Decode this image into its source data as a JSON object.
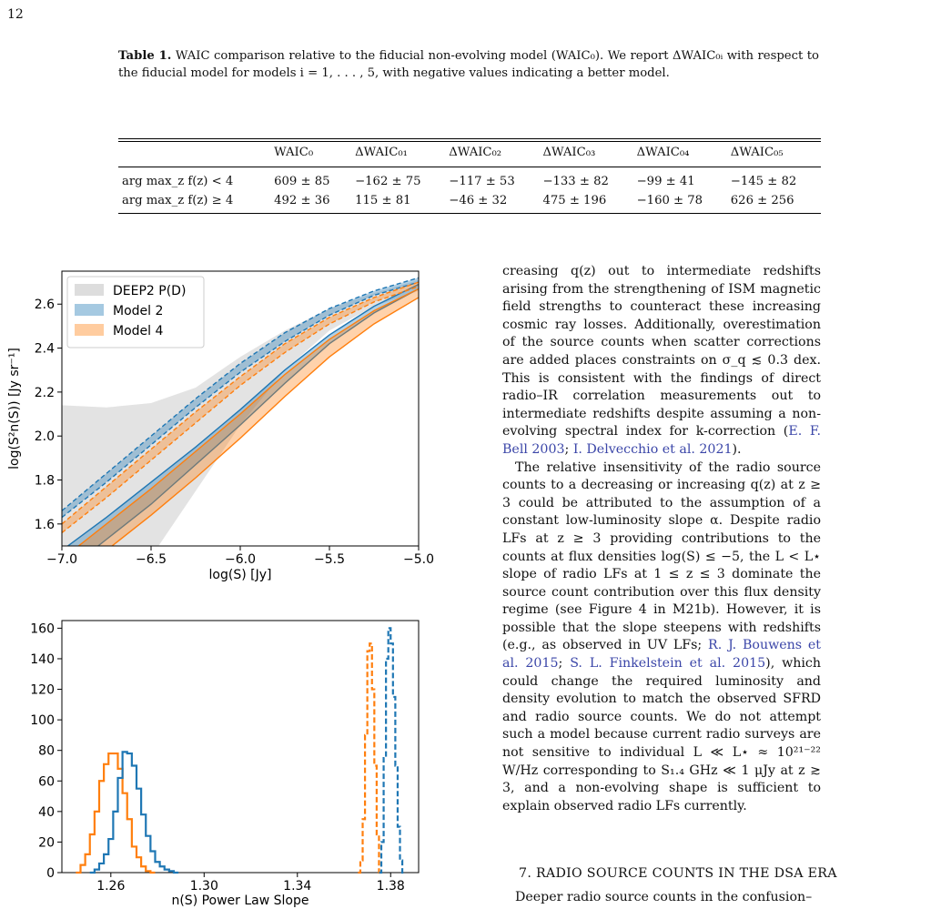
{
  "page_number": "12",
  "table": {
    "caption_label": "Table 1.",
    "caption_text": "WAIC comparison relative to the fiducial non-evolving model (WAIC₀). We report ΔWAIC₀ᵢ with respect to the fiducial model for models i = 1, . . . , 5, with negative values indicating a better model.",
    "headers": [
      "",
      "WAIC₀",
      "ΔWAIC₀₁",
      "ΔWAIC₀₂",
      "ΔWAIC₀₃",
      "ΔWAIC₀₄",
      "ΔWAIC₀₅"
    ],
    "rows": [
      [
        "arg max_z f(z) < 4",
        "609 ± 85",
        "−162 ± 75",
        "−117 ± 53",
        "−133 ± 82",
        "−99 ± 41",
        "−145 ± 82"
      ],
      [
        "arg max_z f(z) ≥ 4",
        "492 ± 36",
        "115 ± 81",
        "−46 ± 32",
        "475 ± 196",
        "−160 ± 78",
        "626 ± 256"
      ]
    ]
  },
  "chart_data": [
    {
      "type": "area",
      "xlabel": "log(S) [Jy]",
      "ylabel": "log(S²n(S)) [Jy sr⁻¹]",
      "xlim": [
        -7.0,
        -5.0
      ],
      "ylim": [
        1.5,
        2.75
      ],
      "x_ticks": [
        "−7.0",
        "−6.5",
        "−6.0",
        "−5.5",
        "−5.0"
      ],
      "y_ticks": [
        "1.6",
        "1.8",
        "2.0",
        "2.2",
        "2.4",
        "2.6"
      ],
      "legend_position": "top-left",
      "legend": [
        "DEEP2 P(D)",
        "Model 2",
        "Model 4"
      ],
      "colors": {
        "deep2": "#d9d9d9",
        "model2": "#1f77b4",
        "model4": "#ff7f0e"
      },
      "series": [
        {
          "name": "DEEP2 P(D)",
          "x": [
            -7.0,
            -6.75,
            -6.5,
            -6.25,
            -6.0,
            -5.75,
            -5.5,
            -5.25,
            -5.0
          ],
          "upper": [
            2.14,
            2.13,
            2.15,
            2.22,
            2.36,
            2.48,
            2.58,
            2.65,
            2.71
          ],
          "lower": [
            1.2,
            1.3,
            1.45,
            1.75,
            2.05,
            2.3,
            2.48,
            2.59,
            2.66
          ]
        },
        {
          "name": "Model 2 (solid)",
          "x": [
            -7.0,
            -6.75,
            -6.5,
            -6.25,
            -6.0,
            -5.75,
            -5.5,
            -5.25,
            -5.0
          ],
          "upper": [
            1.48,
            1.63,
            1.79,
            1.95,
            2.12,
            2.3,
            2.46,
            2.59,
            2.69
          ],
          "lower": [
            1.37,
            1.53,
            1.69,
            1.87,
            2.05,
            2.24,
            2.42,
            2.56,
            2.67
          ]
        },
        {
          "name": "Model 4 (solid)",
          "x": [
            -7.0,
            -6.75,
            -6.5,
            -6.25,
            -6.0,
            -5.75,
            -5.5,
            -5.25,
            -5.0
          ],
          "upper": [
            1.44,
            1.6,
            1.76,
            1.93,
            2.1,
            2.28,
            2.44,
            2.57,
            2.67
          ],
          "lower": [
            1.33,
            1.48,
            1.64,
            1.81,
            1.99,
            2.18,
            2.36,
            2.51,
            2.63
          ]
        },
        {
          "name": "Model 2 (dashed)",
          "x": [
            -7.0,
            -6.75,
            -6.5,
            -6.25,
            -6.0,
            -5.75,
            -5.5,
            -5.25,
            -5.0
          ],
          "upper": [
            1.66,
            1.83,
            2.0,
            2.17,
            2.33,
            2.47,
            2.58,
            2.66,
            2.72
          ],
          "lower": [
            1.63,
            1.79,
            1.96,
            2.13,
            2.29,
            2.43,
            2.55,
            2.64,
            2.7
          ]
        },
        {
          "name": "Model 4 (dashed)",
          "x": [
            -7.0,
            -6.75,
            -6.5,
            -6.25,
            -6.0,
            -5.75,
            -5.5,
            -5.25,
            -5.0
          ],
          "upper": [
            1.6,
            1.77,
            1.94,
            2.11,
            2.27,
            2.42,
            2.54,
            2.63,
            2.7
          ],
          "lower": [
            1.56,
            1.72,
            1.89,
            2.06,
            2.23,
            2.38,
            2.51,
            2.61,
            2.68
          ]
        }
      ]
    },
    {
      "type": "line",
      "xlabel": "n(S) Power Law Slope",
      "xlim": [
        1.239,
        1.392
      ],
      "ylim": [
        0,
        165
      ],
      "x_ticks": [
        "1.26",
        "1.30",
        "1.34",
        "1.38"
      ],
      "y_ticks": [
        "0",
        "20",
        "40",
        "60",
        "80",
        "100",
        "120",
        "140",
        "160"
      ],
      "series": [
        {
          "name": "Model 4 solid",
          "color": "#ff7f0e",
          "style": "solid",
          "x": [
            1.246,
            1.248,
            1.25,
            1.252,
            1.254,
            1.256,
            1.258,
            1.26,
            1.262,
            1.264,
            1.266,
            1.268,
            1.27,
            1.272,
            1.274,
            1.276,
            1.278
          ],
          "values": [
            0,
            5,
            12,
            25,
            40,
            60,
            71,
            78,
            78,
            68,
            52,
            35,
            17,
            10,
            4,
            1,
            0
          ]
        },
        {
          "name": "Model 2 solid",
          "color": "#1f77b4",
          "style": "solid",
          "x": [
            1.252,
            1.254,
            1.256,
            1.258,
            1.26,
            1.262,
            1.264,
            1.266,
            1.268,
            1.27,
            1.272,
            1.274,
            1.276,
            1.278,
            1.28,
            1.282,
            1.284,
            1.286,
            1.288
          ],
          "values": [
            0,
            2,
            6,
            12,
            22,
            40,
            62,
            79,
            78,
            70,
            55,
            38,
            24,
            14,
            7,
            4,
            2,
            1,
            0
          ]
        },
        {
          "name": "Model 4 dashed",
          "color": "#ff7f0e",
          "style": "dashed",
          "x": [
            1.3665,
            1.3675,
            1.3685,
            1.3695,
            1.3705,
            1.3715,
            1.3725,
            1.3735,
            1.3745,
            1.3755
          ],
          "values": [
            0,
            8,
            35,
            90,
            145,
            150,
            120,
            70,
            25,
            0
          ]
        },
        {
          "name": "Model 2 dashed",
          "color": "#1f77b4",
          "style": "dashed",
          "x": [
            1.3755,
            1.3765,
            1.3775,
            1.3785,
            1.3795,
            1.3805,
            1.3815,
            1.3825,
            1.3835,
            1.3845,
            1.3855
          ],
          "values": [
            0,
            20,
            75,
            140,
            160,
            150,
            115,
            70,
            30,
            8,
            0
          ]
        }
      ]
    }
  ],
  "body": {
    "p1": "creasing q(z) out to intermediate redshifts arising from the strengthening of ISM magnetic field strengths to counteract these increasing cosmic ray losses. Additionally, overestimation of the source counts when scatter corrections are added places constraints on σ_q ≲ 0.3 dex. This is consistent with the findings of direct radio–IR correlation measurements out to intermediate redshifts despite assuming a non-evolving spectral index for k-correction (",
    "p1_cite1": "E. F. Bell 2003",
    "p1_sep": "; ",
    "p1_cite2": "I. Delvecchio et al. 2021",
    "p1_end": ").",
    "p2a": "The relative insensitivity of the radio source counts to a decreasing or increasing q(z) at z ≥ 3 could be attributed to the assumption of a constant low-luminosity slope α. Despite radio LFs at z ≥ 3 providing contributions to the counts at flux densities log(S) ≤ −5, the L < L⋆ slope of radio LFs at 1 ≤ z ≤ 3 dominate the source count contribution over this flux density regime (see Figure 4 in M21b). However, it is possible that the slope steepens with redshifts (e.g., as observed in UV LFs; ",
    "p2_cite1": "R. J. Bouwens et al. 2015",
    "p2_sep": "; ",
    "p2_cite2": "S. L. Finkelstein et al. 2015",
    "p2b": "), which could change the required luminosity and density evolution to match the observed SFRD and radio source counts. We do not attempt such a model because current radio surveys are not sensitive to individual L ≪ L⋆ ≈ 10²¹⁻²² W/Hz corresponding to S₁.₄ GHz ≪ 1 μJy at z ≳ 3, and a non-evolving shape is sufficient to explain observed radio LFs currently.",
    "section_heading": "7. RADIO SOURCE COUNTS IN THE DSA ERA",
    "p3_start": "Deeper radio source counts in the confusion–"
  }
}
